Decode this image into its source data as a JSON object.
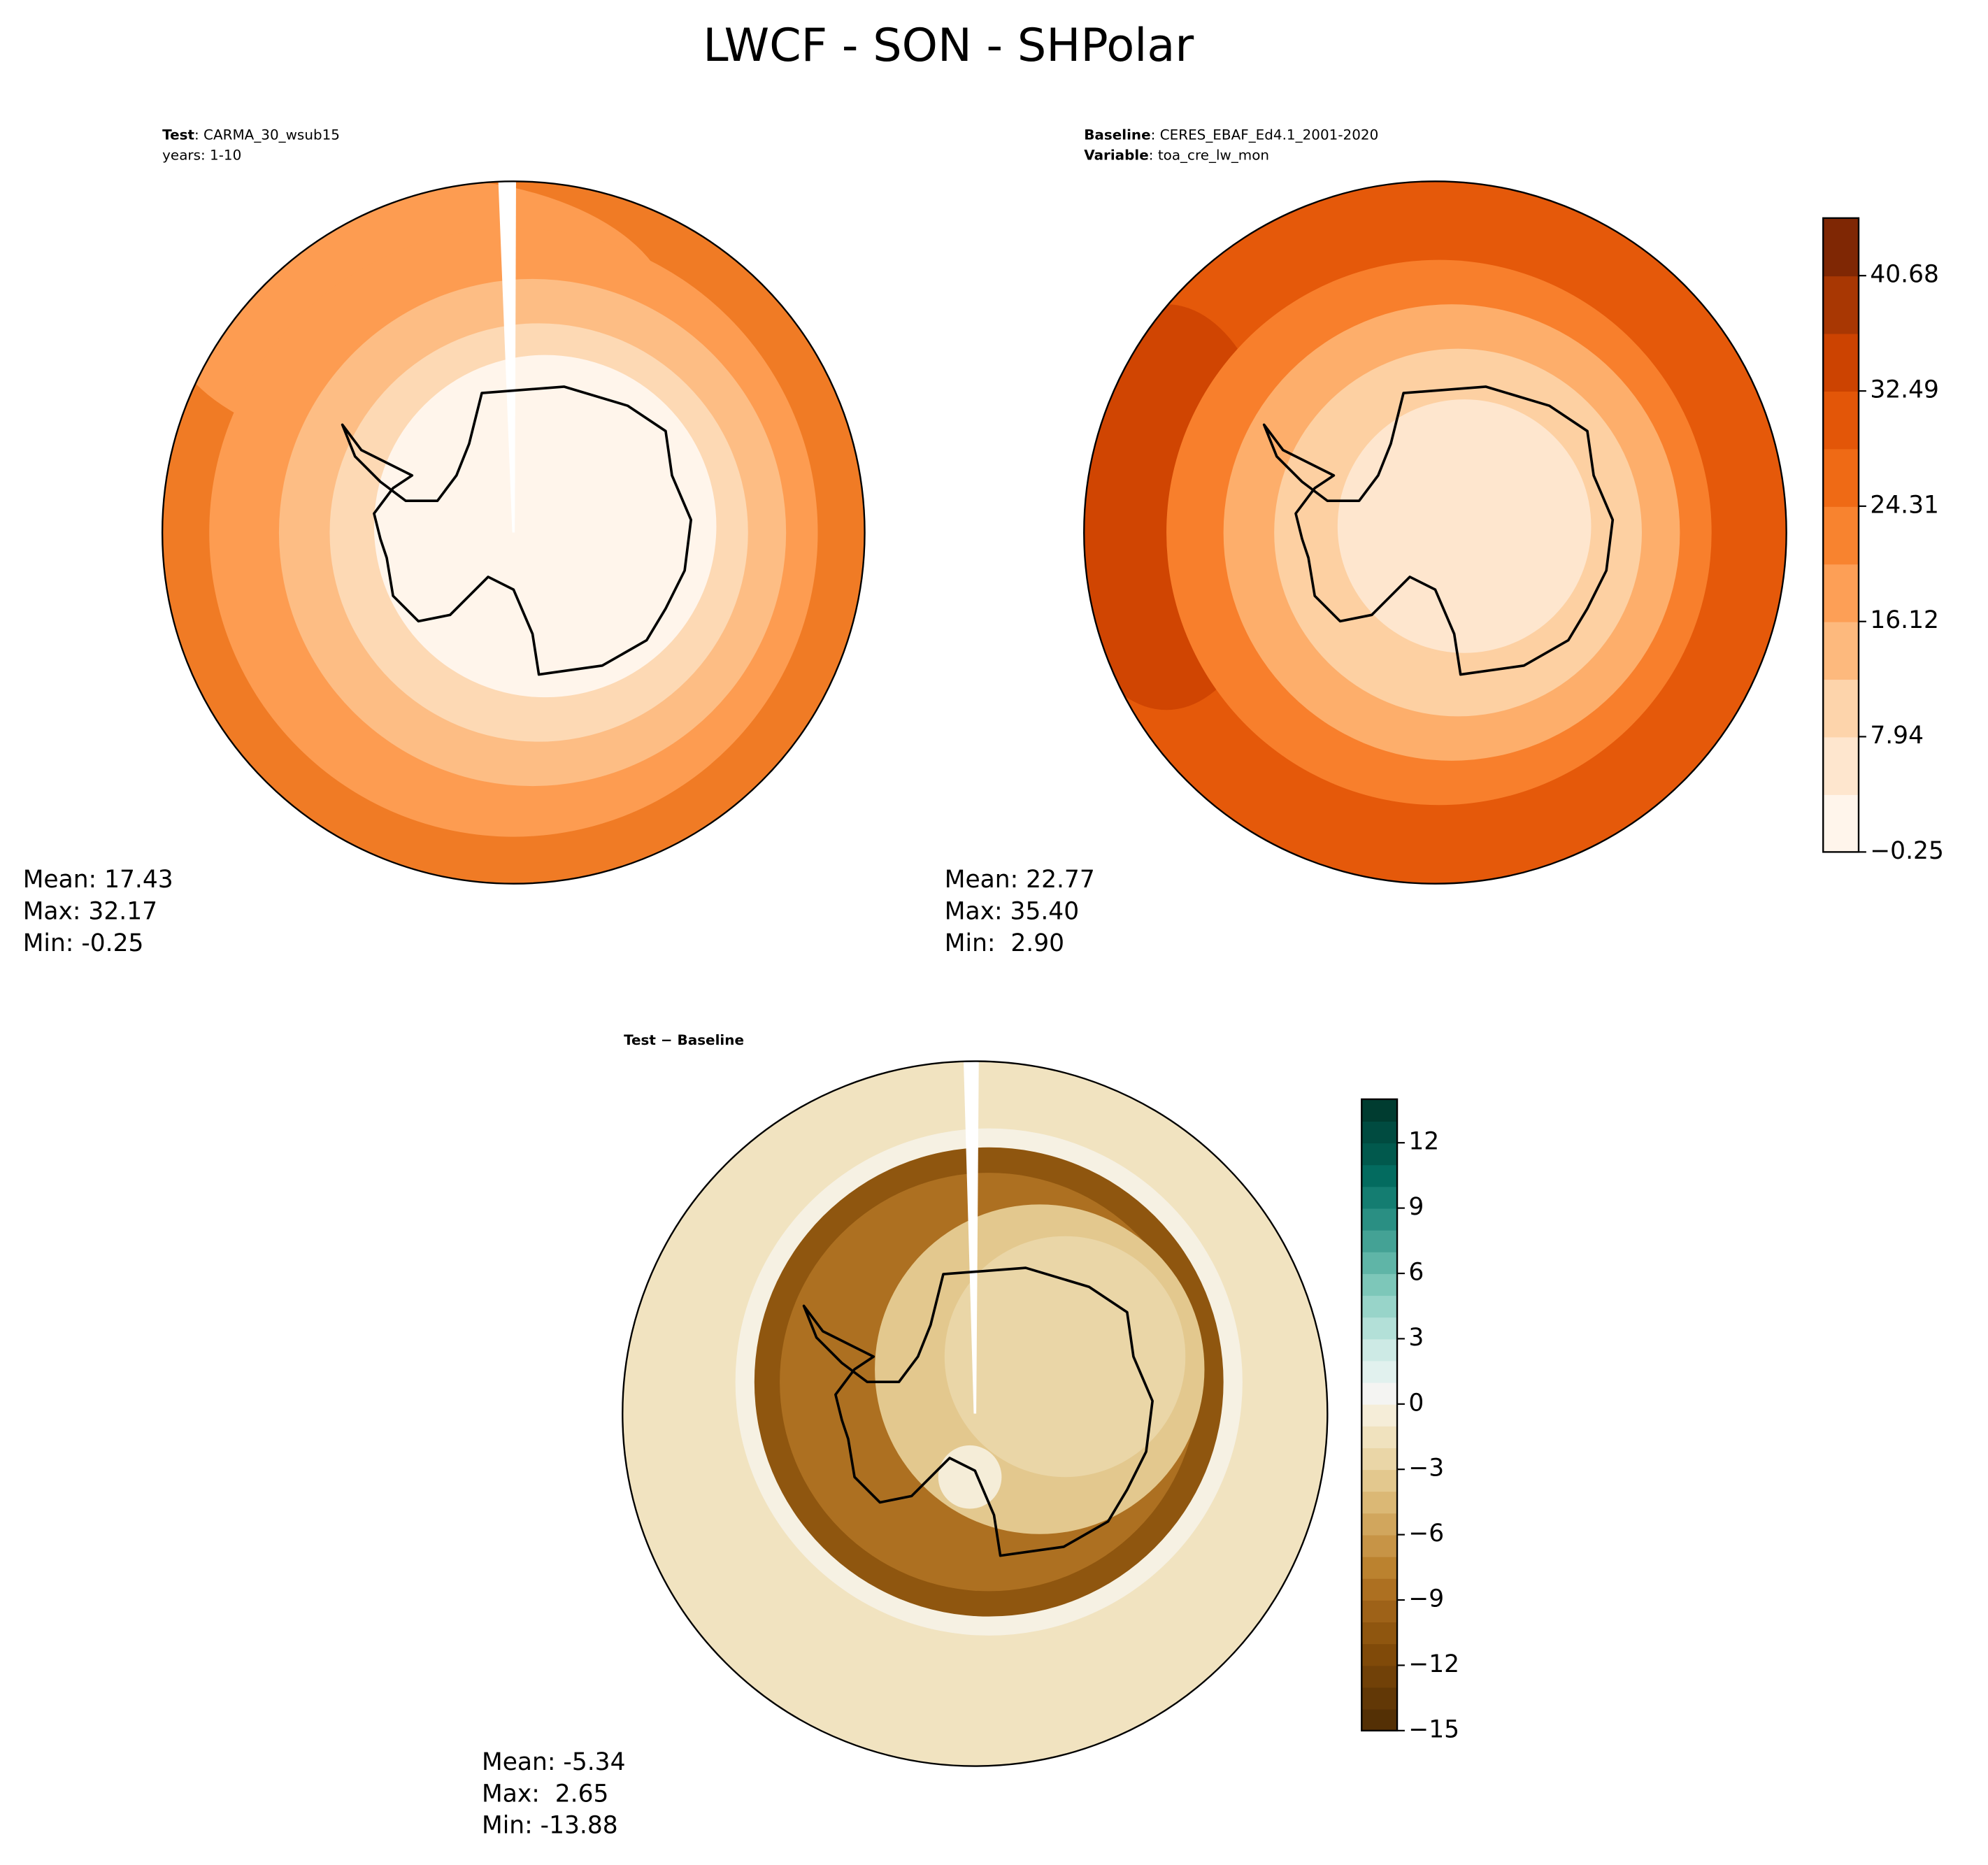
{
  "title": "LWCF - SON - SHPolar",
  "panels": [
    {
      "header": [
        {
          "key": "Test",
          "value": ": CARMA_30_wsub15"
        },
        {
          "value": "years: 1-10"
        }
      ],
      "stats": [
        "Mean: 17.43",
        "Max: 32.17",
        "Min: -0.25"
      ]
    },
    {
      "header": [
        {
          "key": "Baseline",
          "value": ": CERES_EBAF_Ed4.1_2001-2020"
        },
        {
          "key": "Variable",
          "value": ": toa_cre_lw_mon"
        }
      ],
      "stats": [
        "Mean: 22.77",
        "Max: 35.40",
        "Min:  2.90"
      ]
    },
    {
      "header": [
        {
          "key": "Test − Baseline"
        }
      ],
      "stats": [
        "Mean: -5.34",
        "Max:  2.65",
        "Min: -13.88"
      ]
    }
  ],
  "colorbars": [
    {
      "lim": [
        -0.25,
        44.77
      ],
      "ticks": [
        {
          "value": -0.25,
          "label": "−0.25"
        },
        7.94,
        16.12,
        24.31,
        32.49,
        40.68
      ],
      "colors": [
        "#fff5eb",
        "#fee6ce",
        "#fdd4ab",
        "#fdb97d",
        "#fd9f56",
        "#f8832f",
        "#ef6a15",
        "#e35608",
        "#cc4301",
        "#a83703",
        "#7f2704"
      ]
    },
    {
      "lim": [
        -15,
        14
      ],
      "ticks": [
        {
          "value": -15,
          "label": "−15"
        },
        {
          "value": -12,
          "label": "−12"
        },
        {
          "value": -9,
          "label": "−9"
        },
        {
          "value": -6,
          "label": "−6"
        },
        {
          "value": -3,
          "label": "−3"
        },
        0,
        3,
        6,
        9,
        12
      ],
      "colors": [
        "#543005",
        "#623806",
        "#714108",
        "#804a09",
        "#8f560f",
        "#9e6218",
        "#ad7021",
        "#bb822f",
        "#c79446",
        "#d1a65d",
        "#dbb875",
        "#e3c88e",
        "#ead6a7",
        "#f0e2be",
        "#f5edd8",
        "#f4f4f2",
        "#e1f1ee",
        "#cdeae5",
        "#b3e0d8",
        "#98d4c9",
        "#7dc7b9",
        "#5fb5a7",
        "#44a295",
        "#2a8f83",
        "#147d71",
        "#036b5f",
        "#01594d",
        "#004b40",
        "#003c30"
      ]
    }
  ]
}
